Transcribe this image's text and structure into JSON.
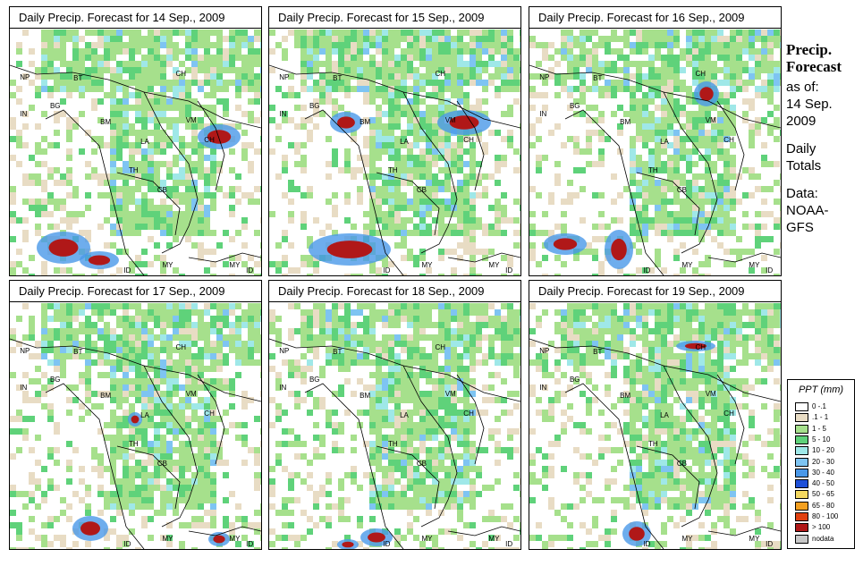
{
  "panels": [
    {
      "title": "Daily Precip. Forecast for  14 Sep., 2009"
    },
    {
      "title": "Daily Precip. Forecast for  15 Sep., 2009"
    },
    {
      "title": "Daily Precip. Forecast for  16 Sep., 2009"
    },
    {
      "title": "Daily Precip. Forecast for  17 Sep., 2009"
    },
    {
      "title": "Daily Precip. Forecast for  18 Sep., 2009"
    },
    {
      "title": "Daily Precip. Forecast for  19 Sep., 2009"
    }
  ],
  "map_labels": [
    "NP",
    "BT",
    "IN",
    "BG",
    "BM",
    "CH",
    "VM",
    "LA",
    "TH",
    "CB",
    "CH",
    "MY",
    "ID",
    "MY",
    "ID"
  ],
  "side": {
    "heading_1": "Precip.",
    "heading_2": "Forecast",
    "asof_1": "as of:",
    "asof_2": "14 Sep.",
    "asof_3": "2009",
    "totals_1": "Daily",
    "totals_2": "Totals",
    "data_1": "Data:",
    "data_2": "NOAA-",
    "data_3": "GFS"
  },
  "legend": {
    "title": "PPT (mm)",
    "items": [
      {
        "label": "0 -.1",
        "color": "#ffffff"
      },
      {
        "label": ".1 - 1",
        "color": "#e8dcc4"
      },
      {
        "label": "1 - 5",
        "color": "#a6e08c"
      },
      {
        "label": "5 - 10",
        "color": "#5fd27a"
      },
      {
        "label": "10 - 20",
        "color": "#9fe8e8"
      },
      {
        "label": "20 - 30",
        "color": "#7ec4f2"
      },
      {
        "label": "30 - 40",
        "color": "#4a98e8"
      },
      {
        "label": "40 - 50",
        "color": "#1e50d8"
      },
      {
        "label": "50 - 65",
        "color": "#f4d860"
      },
      {
        "label": "65 - 80",
        "color": "#f4a020"
      },
      {
        "label": "80 - 100",
        "color": "#e04010"
      },
      {
        "label": "> 100",
        "color": "#b01818"
      },
      {
        "label": "nodata",
        "color": "#c8c8c8"
      }
    ]
  }
}
